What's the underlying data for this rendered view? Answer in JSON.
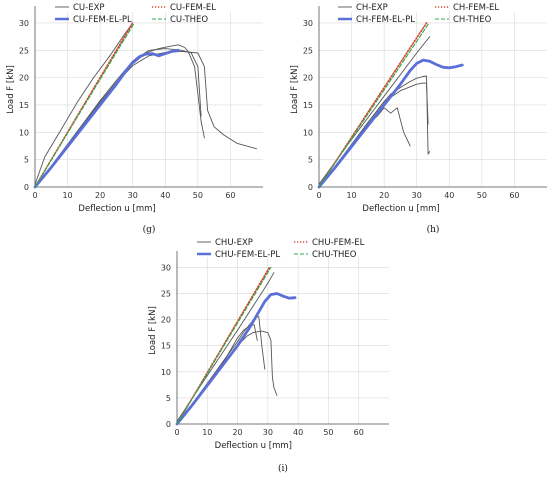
{
  "chart_data": [
    {
      "type": "line",
      "caption": "(g)",
      "xlabel": "Deflection u [mm]",
      "ylabel": "Load F [kN]",
      "xlim": [
        0,
        70
      ],
      "ylim": [
        0,
        32
      ],
      "xticks": [
        0,
        10,
        20,
        30,
        40,
        50,
        60
      ],
      "yticks": [
        0,
        5,
        10,
        15,
        20,
        25,
        30
      ],
      "grid": true,
      "legend_position": "top-left",
      "series": [
        {
          "name": "CU-EXP",
          "color": "#555555",
          "style": "solid",
          "width": 0.9,
          "x": [
            0,
            5,
            10,
            15,
            20,
            25,
            30,
            34,
            38,
            42,
            44,
            46,
            47,
            49,
            50,
            51,
            52
          ],
          "y": [
            0,
            3.5,
            7.5,
            11.5,
            15.5,
            19.2,
            22.5,
            24.5,
            25.3,
            25.8,
            26.0,
            25.5,
            24.8,
            22.0,
            17.0,
            12.0,
            9.0
          ]
        },
        {
          "name": "CU-EXP",
          "color": "#555555",
          "style": "solid",
          "width": 0.9,
          "x": [
            0,
            5,
            10,
            15,
            20,
            25,
            30,
            35,
            40,
            45,
            48,
            50,
            51
          ],
          "y": [
            0,
            3.8,
            7.8,
            11.8,
            15.8,
            19.5,
            23.0,
            25.0,
            25.3,
            25.0,
            24.5,
            22.0,
            13.0
          ]
        },
        {
          "name": "CU-EXP",
          "color": "#555555",
          "style": "solid",
          "width": 0.9,
          "x": [
            0,
            5,
            10,
            15,
            20,
            25,
            30,
            35,
            40,
            45,
            50,
            52,
            53,
            55,
            58,
            62,
            68
          ],
          "y": [
            0,
            3.6,
            7.6,
            11.6,
            15.5,
            19.0,
            22.2,
            24.0,
            24.6,
            24.8,
            24.5,
            22.0,
            14.0,
            11.0,
            9.5,
            8.0,
            7.0
          ]
        },
        {
          "name": "CU-EXP",
          "color": "#555555",
          "style": "solid",
          "width": 0.9,
          "x": [
            0,
            3,
            8,
            13,
            18,
            23,
            27,
            30
          ],
          "y": [
            0.5,
            5.5,
            10.5,
            15.5,
            20.0,
            24.0,
            27.5,
            30.0
          ]
        },
        {
          "name": "CU-FEM-EL",
          "color": "#d9452b",
          "style": "dotted",
          "width": 1.6,
          "x": [
            0,
            30
          ],
          "y": [
            0,
            30
          ]
        },
        {
          "name": "CU-FEM-EL-PL",
          "color": "#5b6fd8",
          "style": "solid",
          "width": 2.8,
          "x": [
            0,
            5,
            10,
            15,
            20,
            25,
            28,
            30,
            32,
            34,
            36,
            38,
            40,
            42,
            44
          ],
          "y": [
            0,
            3.6,
            7.4,
            11.2,
            15.0,
            18.8,
            21.3,
            22.8,
            23.8,
            24.3,
            24.4,
            24.0,
            24.4,
            24.8,
            25.0
          ]
        },
        {
          "name": "CU-THEO",
          "color": "#2fa84f",
          "style": "dashed",
          "width": 1.1,
          "x": [
            0,
            30.5
          ],
          "y": [
            0,
            30
          ]
        }
      ]
    },
    {
      "type": "line",
      "caption": "(h)",
      "xlabel": "Deflection u [mm]",
      "ylabel": "Load F [kN]",
      "xlim": [
        0,
        70
      ],
      "ylim": [
        0,
        32
      ],
      "xticks": [
        0,
        10,
        20,
        30,
        40,
        50,
        60
      ],
      "yticks": [
        0,
        5,
        10,
        15,
        20,
        25,
        30
      ],
      "grid": true,
      "legend_position": "top-left",
      "series": [
        {
          "name": "CH-EXP",
          "color": "#555555",
          "style": "solid",
          "width": 0.9,
          "x": [
            0,
            5,
            10,
            15,
            18,
            20,
            22,
            24,
            26,
            28
          ],
          "y": [
            0,
            3.5,
            7.5,
            11.5,
            13.0,
            14.5,
            13.5,
            14.5,
            10.0,
            7.5
          ]
        },
        {
          "name": "CH-EXP",
          "color": "#555555",
          "style": "solid",
          "width": 0.9,
          "x": [
            0,
            5,
            10,
            15,
            20,
            22,
            25,
            28,
            30,
            32,
            33,
            33.5,
            34
          ],
          "y": [
            0,
            3.8,
            7.8,
            11.8,
            15.6,
            17.0,
            18.2,
            19.3,
            19.9,
            20.2,
            20.3,
            6.0,
            6.5
          ]
        },
        {
          "name": "CH-EXP",
          "color": "#555555",
          "style": "solid",
          "width": 0.9,
          "x": [
            0,
            5,
            10,
            15,
            20,
            25,
            30,
            32,
            33,
            33.5
          ],
          "y": [
            0,
            3.6,
            7.6,
            11.8,
            15.6,
            17.6,
            18.8,
            19.0,
            19.0,
            11.5
          ]
        },
        {
          "name": "CH-EXP",
          "color": "#555555",
          "style": "solid",
          "width": 0.9,
          "x": [
            0,
            10,
            20,
            30,
            34
          ],
          "y": [
            0.5,
            8.7,
            16.6,
            24.5,
            27.5
          ]
        },
        {
          "name": "CH-FEM-EL",
          "color": "#d9452b",
          "style": "dotted",
          "width": 1.6,
          "x": [
            0,
            33
          ],
          "y": [
            0,
            30
          ]
        },
        {
          "name": "CH-FEM-EL-PL",
          "color": "#5b6fd8",
          "style": "solid",
          "width": 2.8,
          "x": [
            0,
            5,
            10,
            15,
            20,
            25,
            28,
            30,
            32,
            34,
            36,
            38,
            40,
            42,
            44
          ],
          "y": [
            0,
            3.6,
            7.4,
            11.2,
            15.0,
            18.8,
            21.3,
            22.6,
            23.2,
            23.0,
            22.4,
            21.9,
            21.8,
            22.0,
            22.3
          ]
        },
        {
          "name": "CH-THEO",
          "color": "#2fa84f",
          "style": "dashed",
          "width": 1.1,
          "x": [
            0,
            33.8
          ],
          "y": [
            0,
            30
          ]
        }
      ]
    },
    {
      "type": "line",
      "caption": "(i)",
      "xlabel": "Deflection u [mm]",
      "ylabel": "Load F [kN]",
      "xlim": [
        0,
        70
      ],
      "ylim": [
        0,
        32
      ],
      "xticks": [
        0,
        10,
        20,
        30,
        40,
        50,
        60
      ],
      "yticks": [
        0,
        5,
        10,
        15,
        20,
        25,
        30
      ],
      "grid": true,
      "legend_position": "top-left",
      "series": [
        {
          "name": "CHU-EXP",
          "color": "#555555",
          "style": "solid",
          "width": 0.9,
          "x": [
            0,
            5,
            10,
            15,
            18,
            20,
            22,
            24,
            25.5,
            26.5
          ],
          "y": [
            0,
            3.5,
            7.5,
            11.5,
            14.5,
            16.5,
            18.0,
            18.8,
            19.0,
            16.0
          ]
        },
        {
          "name": "CHU-EXP",
          "color": "#555555",
          "style": "solid",
          "width": 0.9,
          "x": [
            0,
            5,
            10,
            15,
            20,
            22,
            25,
            26,
            27,
            28,
            29
          ],
          "y": [
            0,
            3.8,
            7.8,
            11.8,
            15.8,
            17.6,
            19.8,
            20.4,
            20.6,
            15.0,
            10.5
          ]
        },
        {
          "name": "CHU-EXP",
          "color": "#555555",
          "style": "solid",
          "width": 0.9,
          "x": [
            0,
            5,
            10,
            15,
            20,
            23,
            25,
            28,
            30,
            31,
            31.5,
            32,
            33
          ],
          "y": [
            0,
            3.6,
            7.6,
            11.6,
            15.0,
            16.8,
            17.5,
            17.8,
            17.5,
            16.0,
            9.0,
            7.0,
            5.5
          ]
        },
        {
          "name": "CHU-EXP",
          "color": "#555555",
          "style": "solid",
          "width": 0.9,
          "x": [
            0,
            10,
            20,
            30,
            32
          ],
          "y": [
            0.5,
            9.3,
            18.0,
            27.0,
            29.0
          ]
        },
        {
          "name": "CHU-FEM-EL",
          "color": "#d9452b",
          "style": "dotted",
          "width": 1.6,
          "x": [
            0,
            30.5
          ],
          "y": [
            0,
            30
          ]
        },
        {
          "name": "CHU-FEM-EL-PL",
          "color": "#5b6fd8",
          "style": "solid",
          "width": 2.8,
          "x": [
            0,
            5,
            10,
            15,
            20,
            24,
            27,
            29,
            31,
            33,
            35,
            37,
            39
          ],
          "y": [
            0,
            3.6,
            7.4,
            11.2,
            15.0,
            18.5,
            21.5,
            23.5,
            24.8,
            25.0,
            24.5,
            24.1,
            24.2
          ]
        },
        {
          "name": "CHU-THEO",
          "color": "#2fa84f",
          "style": "dashed",
          "width": 1.1,
          "x": [
            0,
            31
          ],
          "y": [
            0,
            30
          ]
        }
      ]
    }
  ]
}
